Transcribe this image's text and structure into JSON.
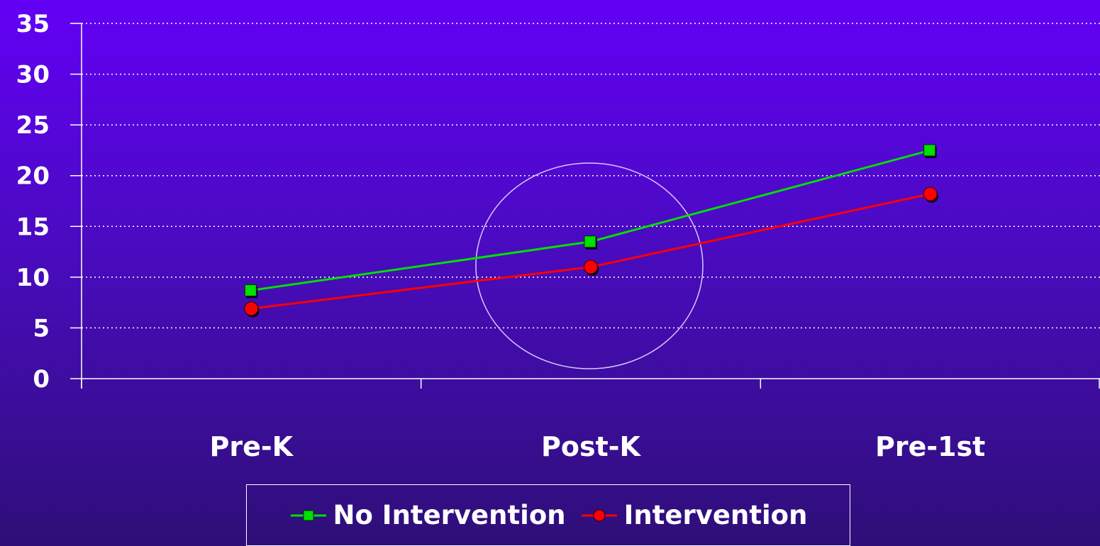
{
  "chart_data": {
    "type": "line",
    "categories": [
      "Pre-K",
      "Post-K",
      "Pre-1st"
    ],
    "series": [
      {
        "name": "No Intervention",
        "values": [
          8.7,
          13.5,
          22.5
        ],
        "color": "#00e000",
        "marker": "square"
      },
      {
        "name": "Intervention",
        "values": [
          6.9,
          11.0,
          18.2
        ],
        "color": "#ff0000",
        "marker": "circle"
      }
    ],
    "yticks": [
      0,
      5,
      10,
      15,
      20,
      25,
      30,
      35
    ],
    "ylim": [
      0,
      35
    ],
    "grid": true,
    "legend_position": "bottom",
    "annotation": {
      "type": "circle",
      "around_category": "Post-K",
      "color": "#d8c8ff"
    },
    "title": "",
    "xlabel": "",
    "ylabel": ""
  }
}
